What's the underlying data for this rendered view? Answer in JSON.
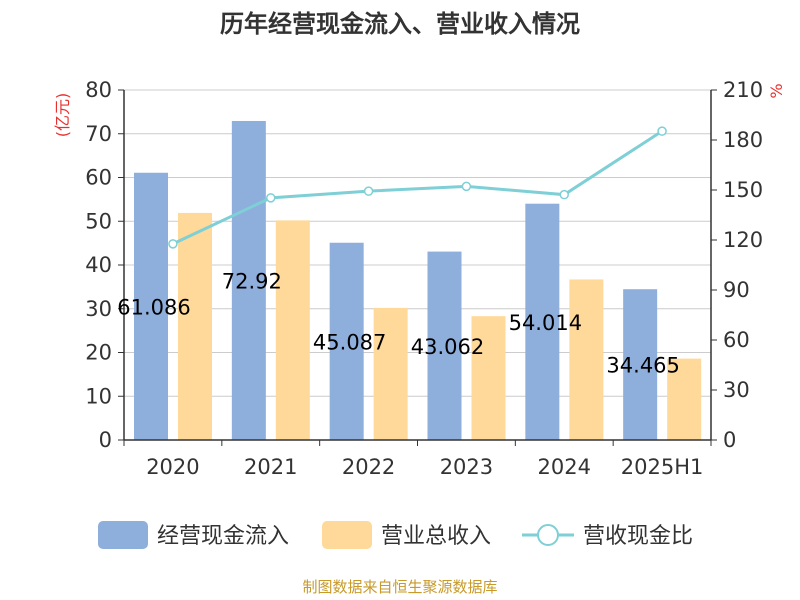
{
  "chart_data": {
    "type": "bar",
    "title": "历年经营现金流入、营业收入情况",
    "categories": [
      "2020",
      "2021",
      "2022",
      "2023",
      "2024",
      "2025H1"
    ],
    "y_left_unit": "(亿元)",
    "y_right_unit": "%",
    "ylim_left": [
      0,
      80
    ],
    "yticks_left": [
      "0",
      "10",
      "20",
      "30",
      "40",
      "50",
      "60",
      "70",
      "80"
    ],
    "ylim_right": [
      0,
      210
    ],
    "yticks_right": [
      "0",
      "30",
      "60",
      "90",
      "120",
      "150",
      "180",
      "210"
    ],
    "grid": true,
    "legend_position": "bottom",
    "series": [
      {
        "name": "经营现金流入",
        "type": "bar",
        "axis": "left",
        "color": "#8eaedb",
        "values": [
          61.086,
          72.92,
          45.087,
          43.062,
          54.014,
          34.465
        ],
        "labels": [
          "61.086",
          "72.92",
          "45.087",
          "43.062",
          "54.014",
          "34.465"
        ]
      },
      {
        "name": "营业总收入",
        "type": "bar",
        "axis": "left",
        "color": "#ffd999",
        "values": [
          51.9,
          50.2,
          30.2,
          28.3,
          36.7,
          18.6
        ]
      },
      {
        "name": "营收现金比",
        "type": "line",
        "axis": "right",
        "color": "#7ecfd6",
        "values": [
          117.7,
          145.3,
          149.3,
          152.2,
          147.2,
          185.3
        ]
      }
    ]
  },
  "source": "制图数据来自恒生聚源数据库"
}
